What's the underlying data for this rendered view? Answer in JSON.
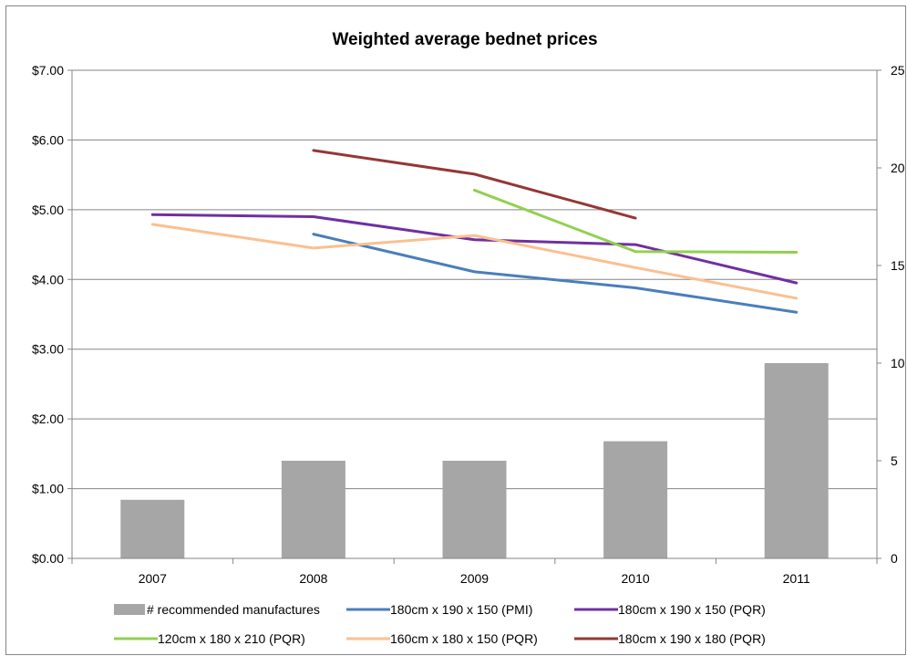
{
  "chart_data": {
    "type": "bar+line",
    "title": "Weighted average bednet prices",
    "categories": [
      "2007",
      "2008",
      "2009",
      "2010",
      "2011"
    ],
    "left_axis": {
      "ticks": [
        "$0.00",
        "$1.00",
        "$2.00",
        "$3.00",
        "$4.00",
        "$5.00",
        "$6.00",
        "$7.00"
      ],
      "ylim": [
        0,
        7
      ]
    },
    "right_axis": {
      "ticks": [
        "0",
        "5",
        "10",
        "15",
        "20",
        "25"
      ],
      "ylim": [
        0,
        25
      ]
    },
    "bar_series": {
      "name": "# recommended manufactures",
      "color": "#a6a6a6",
      "axis": "right",
      "values": [
        3,
        5,
        5,
        6,
        10
      ]
    },
    "line_series": [
      {
        "name": "180cm x 190 x 150 (PMI)",
        "color": "#4a7ebb",
        "values": [
          null,
          4.65,
          4.11,
          3.88,
          3.53
        ]
      },
      {
        "name": "180cm x 190 x 150 (PQR)",
        "color": "#7030a0",
        "values": [
          4.93,
          4.9,
          4.57,
          4.5,
          3.95
        ]
      },
      {
        "name": "120cm x 180 x 210 (PQR)",
        "color": "#92d050",
        "values": [
          null,
          null,
          5.28,
          4.4,
          4.39
        ]
      },
      {
        "name": "160cm x 180 x 150 (PQR)",
        "color": "#fac090",
        "values": [
          4.79,
          4.45,
          4.63,
          4.17,
          3.73
        ]
      },
      {
        "name": "180cm x 190 x 180 (PQR)",
        "color": "#953735",
        "values": [
          null,
          5.85,
          5.51,
          4.88,
          null
        ]
      }
    ],
    "grid": true,
    "legend_position": "bottom"
  }
}
